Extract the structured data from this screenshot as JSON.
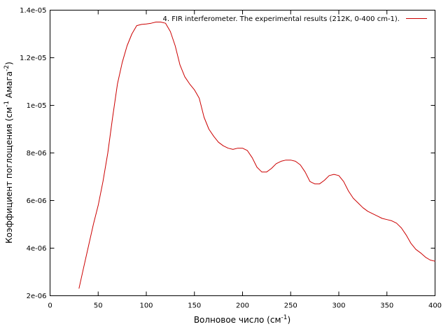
{
  "chart_data": {
    "type": "line",
    "xlabel": {
      "main": "Волновое число (см",
      "sup": "-1",
      "tail": ")"
    },
    "ylabel": {
      "p1": "Коэффициент поглощения (см",
      "s1": "-1",
      "p2": " Амага",
      "s2": "-2",
      "p3": ")"
    },
    "xlim": [
      0,
      400
    ],
    "ylim": [
      2e-06,
      1.4e-05
    ],
    "x_ticks": [
      0,
      50,
      100,
      150,
      200,
      250,
      300,
      350,
      400
    ],
    "x_tick_labels": [
      "0",
      "50",
      "100",
      "150",
      "200",
      "250",
      "300",
      "350",
      "400"
    ],
    "y_ticks": [
      2e-06,
      4e-06,
      6e-06,
      8e-06,
      1e-05,
      1.2e-05,
      1.4e-05
    ],
    "y_tick_labels": [
      "2e-06",
      "4e-06",
      "6e-06",
      "8e-06",
      "1e-05",
      "1.2e-05",
      "1.4e-05"
    ],
    "grid": false,
    "legend_position": "top-right",
    "series": [
      {
        "name": "4. FIR interferometer. The experimental  results (212K, 0-400 cm-1).",
        "color": "#cc0000",
        "x": [
          30,
          35,
          40,
          45,
          50,
          55,
          60,
          65,
          70,
          75,
          80,
          85,
          90,
          95,
          100,
          105,
          110,
          115,
          120,
          125,
          130,
          135,
          140,
          145,
          150,
          155,
          160,
          165,
          170,
          175,
          180,
          185,
          190,
          195,
          200,
          205,
          210,
          215,
          220,
          225,
          230,
          235,
          240,
          245,
          250,
          255,
          260,
          265,
          270,
          275,
          280,
          285,
          290,
          295,
          300,
          305,
          310,
          315,
          320,
          325,
          330,
          335,
          340,
          345,
          350,
          355,
          360,
          365,
          370,
          375,
          380,
          385,
          390,
          395,
          400
        ],
        "y": [
          2.3e-06,
          3.2e-06,
          4.1e-06,
          5e-06,
          5.8e-06,
          6.8e-06,
          8e-06,
          9.5e-06,
          1.09e-05,
          1.18e-05,
          1.25e-05,
          1.3e-05,
          1.335e-05,
          1.34e-05,
          1.342e-05,
          1.345e-05,
          1.35e-05,
          1.35e-05,
          1.345e-05,
          1.31e-05,
          1.25e-05,
          1.17e-05,
          1.12e-05,
          1.09e-05,
          1.065e-05,
          1.03e-05,
          9.5e-06,
          9e-06,
          8.7e-06,
          8.45e-06,
          8.3e-06,
          8.2e-06,
          8.15e-06,
          8.2e-06,
          8.2e-06,
          8.1e-06,
          7.8e-06,
          7.4e-06,
          7.2e-06,
          7.2e-06,
          7.35e-06,
          7.55e-06,
          7.65e-06,
          7.7e-06,
          7.7e-06,
          7.65e-06,
          7.5e-06,
          7.2e-06,
          6.8e-06,
          6.7e-06,
          6.7e-06,
          6.85e-06,
          7.05e-06,
          7.1e-06,
          7.05e-06,
          6.8e-06,
          6.4e-06,
          6.1e-06,
          5.9e-06,
          5.7e-06,
          5.55e-06,
          5.45e-06,
          5.35e-06,
          5.25e-06,
          5.2e-06,
          5.15e-06,
          5.05e-06,
          4.85e-06,
          4.55e-06,
          4.2e-06,
          3.95e-06,
          3.8e-06,
          3.62e-06,
          3.5e-06,
          3.45e-06
        ]
      }
    ]
  }
}
